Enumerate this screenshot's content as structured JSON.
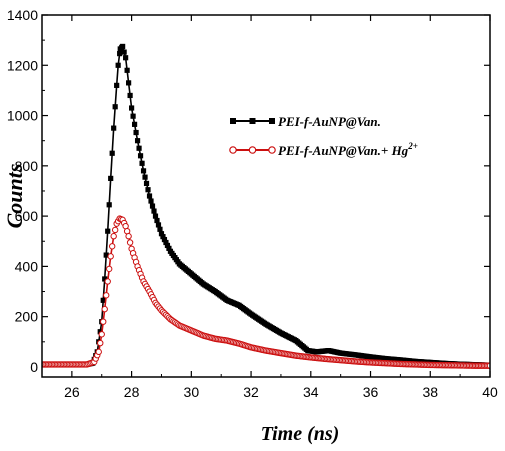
{
  "chart_data": {
    "type": "scatter",
    "xlabel": "Time (ns)",
    "ylabel": "Counts",
    "xlim": [
      25,
      40
    ],
    "ylim": [
      -40,
      1400
    ],
    "xticks": [
      26,
      28,
      30,
      32,
      34,
      36,
      38,
      40
    ],
    "yticks": [
      0,
      200,
      400,
      600,
      800,
      1000,
      1200,
      1400
    ],
    "xtick_labels": [
      "26",
      "28",
      "30",
      "32",
      "34",
      "36",
      "38",
      "40"
    ],
    "ytick_labels": [
      "0",
      "200",
      "400",
      "600",
      "800",
      "1000",
      "1200",
      "1400"
    ],
    "grid": false,
    "legend_position": "right",
    "series": [
      {
        "name": "PEI-f-AuNP@Van.",
        "color": "#000000",
        "marker": "filled-square",
        "x": [
          25.0,
          26.0,
          26.5,
          26.7,
          26.85,
          27.0,
          27.1,
          27.2,
          27.3,
          27.4,
          27.5,
          27.55,
          27.62,
          27.7,
          27.8,
          27.9,
          28.0,
          28.2,
          28.4,
          28.6,
          28.8,
          29.0,
          29.3,
          29.6,
          30.0,
          30.4,
          30.8,
          31.2,
          31.6,
          32.0,
          32.5,
          33.0,
          33.5,
          33.9,
          34.2,
          34.6,
          35.0,
          35.5,
          36.0,
          36.5,
          37.0,
          37.5,
          38.0,
          38.5,
          39.0,
          39.5,
          40.0
        ],
        "y": [
          10,
          10,
          10,
          15,
          60,
          180,
          350,
          540,
          750,
          950,
          1120,
          1200,
          1265,
          1275,
          1230,
          1130,
          1030,
          900,
          780,
          680,
          600,
          530,
          460,
          410,
          370,
          330,
          300,
          265,
          245,
          210,
          170,
          135,
          105,
          65,
          60,
          65,
          55,
          48,
          40,
          33,
          28,
          22,
          18,
          14,
          11,
          9,
          7
        ]
      },
      {
        "name": "PEI-f-AuNP@Van.+ Hg",
        "name_superscript": "2+",
        "color": "#cc1010",
        "marker": "open-circle",
        "x": [
          25.0,
          26.0,
          26.5,
          26.75,
          26.9,
          27.0,
          27.1,
          27.2,
          27.3,
          27.4,
          27.5,
          27.6,
          27.7,
          27.8,
          27.9,
          28.0,
          28.2,
          28.4,
          28.6,
          28.8,
          29.0,
          29.3,
          29.6,
          30.0,
          30.4,
          30.8,
          31.2,
          31.6,
          32.0,
          32.5,
          33.0,
          33.5,
          34.0,
          34.5,
          35.0,
          35.5,
          36.0,
          36.5,
          37.0,
          37.5,
          38.0,
          38.5,
          39.0,
          39.5,
          40.0
        ],
        "y": [
          10,
          10,
          10,
          20,
          60,
          130,
          230,
          340,
          440,
          520,
          570,
          590,
          585,
          560,
          520,
          470,
          400,
          340,
          300,
          255,
          225,
          190,
          165,
          145,
          125,
          112,
          105,
          93,
          78,
          65,
          55,
          45,
          38,
          32,
          27,
          22,
          18,
          15,
          12,
          10,
          8,
          7,
          6,
          5,
          5
        ]
      }
    ]
  }
}
